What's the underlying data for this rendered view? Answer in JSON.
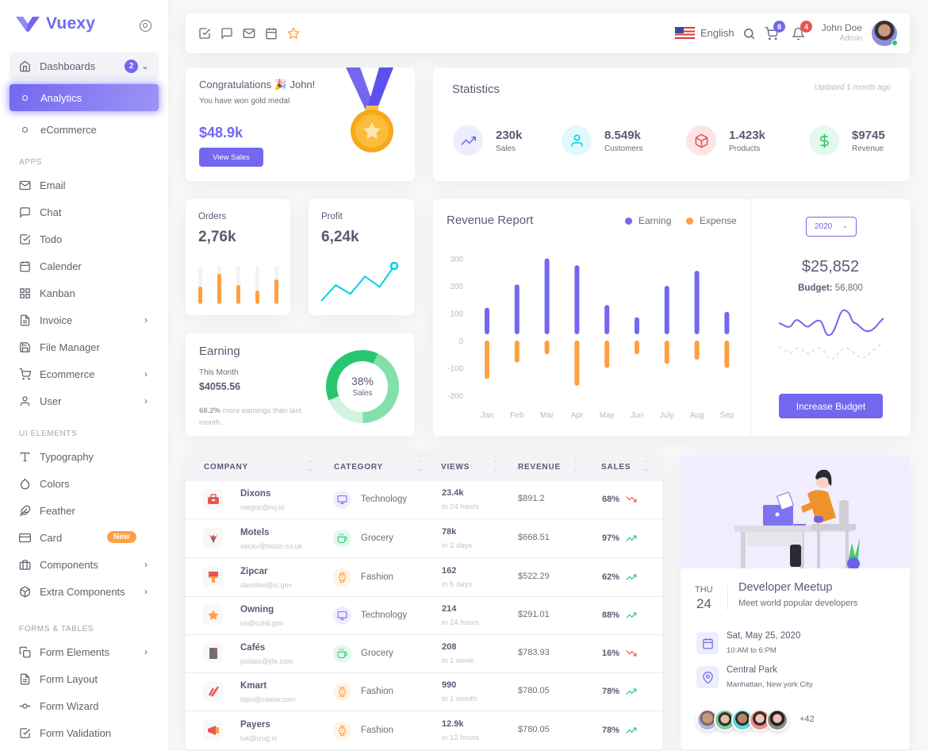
{
  "brand": {
    "name": "Vuexy",
    "accent": "#7367f0"
  },
  "sidebar": {
    "dashboards": {
      "label": "Dashboards",
      "badge": "2"
    },
    "dashboard_items": [
      {
        "label": "Analytics",
        "active": true
      },
      {
        "label": "eCommerce",
        "active": false
      }
    ],
    "sections": [
      {
        "header": "APPS",
        "items": [
          {
            "label": "Email",
            "icon": "mail-icon"
          },
          {
            "label": "Chat",
            "icon": "chat-icon"
          },
          {
            "label": "Todo",
            "icon": "check-square-icon"
          },
          {
            "label": "Calender",
            "icon": "calendar-icon"
          },
          {
            "label": "Kanban",
            "icon": "grid-icon"
          },
          {
            "label": "Invoice",
            "icon": "file-text-icon",
            "chevron": true
          },
          {
            "label": "File Manager",
            "icon": "save-icon"
          },
          {
            "label": "Ecommerce",
            "icon": "cart-icon",
            "chevron": true
          },
          {
            "label": "User",
            "icon": "user-icon",
            "chevron": true
          }
        ]
      },
      {
        "header": "UI ELEMENTS",
        "items": [
          {
            "label": "Typography",
            "icon": "type-icon"
          },
          {
            "label": "Colors",
            "icon": "droplet-icon"
          },
          {
            "label": "Feather",
            "icon": "feather-icon"
          },
          {
            "label": "Card",
            "icon": "credit-card-icon",
            "badge": "New"
          },
          {
            "label": "Components",
            "icon": "briefcase-icon",
            "chevron": true
          },
          {
            "label": "Extra Components",
            "icon": "box-icon",
            "chevron": true
          }
        ]
      },
      {
        "header": "FORMS & TABLES",
        "items": [
          {
            "label": "Form Elements",
            "icon": "copy-icon",
            "chevron": true
          },
          {
            "label": "Form Layout",
            "icon": "file-text-icon"
          },
          {
            "label": "Form Wizard",
            "icon": "git-commit-icon"
          },
          {
            "label": "Form Validation",
            "icon": "check-square-icon"
          }
        ]
      }
    ]
  },
  "navbar": {
    "language": "English",
    "cart_count": "8",
    "notification_count": "4",
    "user_name": "John Doe",
    "user_role": "Admin"
  },
  "congrats": {
    "title": "Congratulations 🎉 John!",
    "subtitle": "You have won gold medal",
    "amount": "$48.9k",
    "button": "View Sales"
  },
  "statistics": {
    "title": "Statistics",
    "updated": "Updated 1 month ago",
    "items": [
      {
        "value": "230k",
        "label": "Sales",
        "icon": "trending-up-icon",
        "color": "#7367f0",
        "bg": "#eeedfd"
      },
      {
        "value": "8.549k",
        "label": "Customers",
        "icon": "user-icon",
        "color": "#00cfe8",
        "bg": "#e0f9fc"
      },
      {
        "value": "1.423k",
        "label": "Products",
        "icon": "box-icon",
        "color": "#ea5455",
        "bg": "#fce5e6"
      },
      {
        "value": "$9745",
        "label": "Revenue",
        "icon": "dollar-icon",
        "color": "#28c76f",
        "bg": "#e5f8ed"
      }
    ]
  },
  "orders": {
    "title": "Orders",
    "value": "2,76k",
    "bars": [
      45,
      80,
      50,
      35,
      65
    ]
  },
  "profit": {
    "title": "Profit",
    "value": "6,24k",
    "points": [
      0,
      45,
      20,
      70,
      40,
      100
    ]
  },
  "earning": {
    "title": "Earning",
    "period": "This Month",
    "value": "$4055.56",
    "note_pct": "68.2%",
    "note_text": "more earnings than last month.",
    "donut_pct": "38%",
    "donut_label": "Sales"
  },
  "revenue_report": {
    "title": "Revenue Report",
    "legend": [
      {
        "label": "Earning",
        "color": "#7367f0"
      },
      {
        "label": "Expense",
        "color": "#ff9f43"
      }
    ],
    "year": "2020",
    "budget_amount": "$25,852",
    "budget_label": "Budget:",
    "budget_value": "56,800",
    "button": "Increase Budget"
  },
  "chart_data": {
    "type": "bar",
    "title": "Revenue Report",
    "categories": [
      "Jan",
      "Feb",
      "Mar",
      "Apr",
      "May",
      "Jun",
      "July",
      "Aug",
      "Sep"
    ],
    "series": [
      {
        "name": "Earning",
        "values": [
          120,
          205,
          300,
          275,
          130,
          85,
          200,
          255,
          105
        ]
      },
      {
        "name": "Expense",
        "values": [
          -140,
          -80,
          -50,
          -165,
          -100,
          -50,
          -85,
          -70,
          -100
        ]
      }
    ],
    "yticks": [
      300,
      200,
      100,
      0,
      -100,
      -200
    ],
    "ylim": [
      -200,
      300
    ],
    "xlabel": "",
    "ylabel": "",
    "grid": false,
    "legend_position": "top-right"
  },
  "table": {
    "headers": [
      "COMPANY",
      "CATEGORY",
      "VIEWS",
      "REVENUE",
      "SALES"
    ],
    "rows": [
      {
        "company": "Dixons",
        "email": "meguc@ruj.io",
        "category": "Technology",
        "views": "23.4k",
        "views_sub": "in 24 hours",
        "revenue": "$891.2",
        "sales": "68%",
        "trend": "down"
      },
      {
        "company": "Motels",
        "email": "vecav@hodzi.co.uk",
        "category": "Grocery",
        "views": "78k",
        "views_sub": "in 2 days",
        "revenue": "$668.51",
        "sales": "97%",
        "trend": "up"
      },
      {
        "company": "Zipcar",
        "email": "davcilse@is.gov",
        "category": "Fashion",
        "views": "162",
        "views_sub": "in 5 days",
        "revenue": "$522.29",
        "sales": "62%",
        "trend": "up"
      },
      {
        "company": "Owning",
        "email": "us@cuhil.gov",
        "category": "Technology",
        "views": "214",
        "views_sub": "in 24 hours",
        "revenue": "$291.01",
        "sales": "88%",
        "trend": "up"
      },
      {
        "company": "Cafés",
        "email": "pudais@jife.com",
        "category": "Grocery",
        "views": "208",
        "views_sub": "in 1 week",
        "revenue": "$783.93",
        "sales": "16%",
        "trend": "down"
      },
      {
        "company": "Kmart",
        "email": "bipri@cawiw.com",
        "category": "Fashion",
        "views": "990",
        "views_sub": "in 1 month",
        "revenue": "$780.05",
        "sales": "78%",
        "trend": "up"
      },
      {
        "company": "Payers",
        "email": "luk@izug.io",
        "category": "Fashion",
        "views": "12.9k",
        "views_sub": "in 12 hours",
        "revenue": "$780.05",
        "sales": "78%",
        "trend": "up"
      }
    ]
  },
  "meetup": {
    "day": "THU",
    "date": "24",
    "title": "Developer Meetup",
    "subtitle": "Meet world popular developers",
    "when": "Sat, May 25, 2020",
    "time": "10:AM to 6:PM",
    "where": "Central Park",
    "where_sub": "Manhattan, New york City",
    "more_attendees": "+42"
  }
}
